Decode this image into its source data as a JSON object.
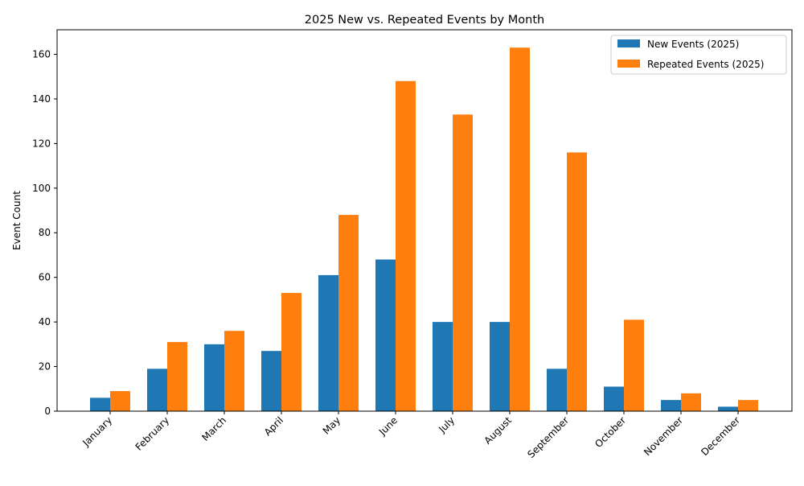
{
  "chart_data": {
    "type": "bar",
    "title": "2025 New vs. Repeated Events by Month",
    "xlabel": "",
    "ylabel": "Event Count",
    "ylim": [
      0,
      171
    ],
    "yticks": [
      0,
      20,
      40,
      60,
      80,
      100,
      120,
      140,
      160
    ],
    "grid": false,
    "legend_position": "top-right",
    "categories": [
      "January",
      "February",
      "March",
      "April",
      "May",
      "June",
      "July",
      "August",
      "September",
      "October",
      "November",
      "December"
    ],
    "series": [
      {
        "name": "New Events (2025)",
        "color": "#1f77b4",
        "values": [
          6,
          19,
          30,
          27,
          61,
          68,
          40,
          40,
          19,
          11,
          5,
          2
        ]
      },
      {
        "name": "Repeated Events (2025)",
        "color": "#ff7f0e",
        "values": [
          9,
          31,
          36,
          53,
          88,
          148,
          133,
          163,
          116,
          41,
          8,
          5
        ]
      }
    ]
  }
}
